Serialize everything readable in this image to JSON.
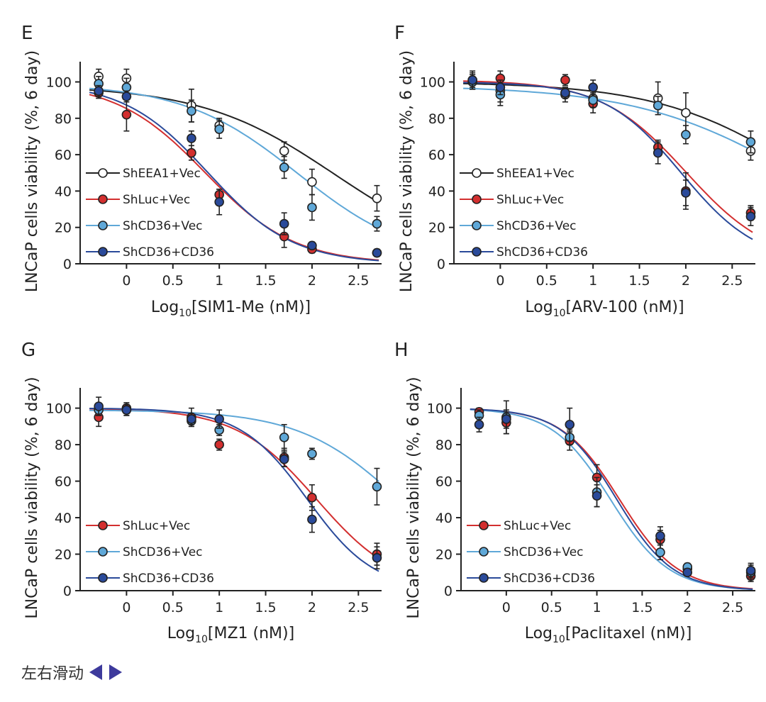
{
  "footer": {
    "scroll_hint": "左右滑动",
    "left_arrow_icon": "triangle-left-icon",
    "right_arrow_icon": "triangle-right-icon",
    "arrow_color": "#3d3a9c"
  },
  "colors": {
    "ShEEA1+Vec": {
      "line": "#222222",
      "fill": "#ffffff"
    },
    "ShLuc+Vec": {
      "line": "#d32f2f",
      "fill": "#d32f2f"
    },
    "ShCD36+Vec": {
      "line": "#5fa8d8",
      "fill": "#5fa8d8"
    },
    "ShCD36+CD36": {
      "line": "#2a4a9a",
      "fill": "#2a4a9a"
    }
  },
  "chart_data": [
    {
      "panel": "E",
      "type": "scatter",
      "xlabel_prefix": "Log",
      "xlabel_sub": "10",
      "xlabel_rest": "[SIM1-Me (nM)]",
      "ylabel": "LNCaP cells viability (%, 6 day)",
      "xlim": [
        -0.5,
        2.75
      ],
      "ylim": [
        0,
        108
      ],
      "xticks": [
        0,
        0.5,
        1,
        1.5,
        2,
        2.5
      ],
      "xtick_labels": [
        "0",
        "0.5",
        "1",
        "1.5",
        "2",
        "2.5"
      ],
      "yticks": [
        0,
        20,
        40,
        60,
        80,
        100
      ],
      "ytick_labels": [
        "0",
        "20",
        "40",
        "60",
        "80",
        "100"
      ],
      "x": [
        -0.3,
        0,
        0.7,
        1,
        1.7,
        2,
        2.7
      ],
      "series": [
        {
          "name": "ShEEA1+Vec",
          "values": [
            103,
            102,
            87,
            76,
            62,
            45,
            36
          ],
          "errors": [
            4,
            5,
            9,
            4,
            5,
            7,
            7
          ],
          "fit": {
            "top": 98,
            "bottom": 0,
            "logIC50": 2.25,
            "hill": 0.6
          }
        },
        {
          "name": "ShLuc+Vec",
          "values": [
            94,
            82,
            61,
            38,
            15,
            8,
            6
          ],
          "errors": [
            3,
            9,
            4,
            3,
            6,
            2,
            2
          ],
          "fit": {
            "top": 100,
            "bottom": 0,
            "logIC50": 0.85,
            "hill": 0.9
          }
        },
        {
          "name": "ShCD36+Vec",
          "values": [
            99,
            97,
            84,
            74,
            53,
            31,
            22
          ],
          "errors": [
            4,
            5,
            6,
            5,
            6,
            7,
            4
          ],
          "fit": {
            "top": 99,
            "bottom": 0,
            "logIC50": 1.85,
            "hill": 0.7
          }
        },
        {
          "name": "ShCD36+CD36",
          "values": [
            95,
            92,
            69,
            34,
            22,
            10,
            6
          ],
          "errors": [
            3,
            3,
            4,
            7,
            6,
            2,
            2
          ],
          "fit": {
            "top": 100,
            "bottom": 0,
            "logIC50": 0.88,
            "hill": 0.95
          }
        }
      ],
      "legend": [
        "ShEEA1+Vec",
        "ShLuc+Vec",
        "ShCD36+Vec",
        "ShCD36+CD36"
      ]
    },
    {
      "panel": "F",
      "type": "scatter",
      "xlabel_prefix": "Log",
      "xlabel_sub": "10",
      "xlabel_rest": "[ARV-100 (nM)]",
      "ylabel": "LNCaP cells viability (%, 6 day)",
      "xlim": [
        -0.5,
        2.75
      ],
      "ylim": [
        0,
        108
      ],
      "xticks": [
        0,
        0.5,
        1,
        1.5,
        2,
        2.5
      ],
      "xtick_labels": [
        "0",
        "0.5",
        "1",
        "1.5",
        "2",
        "2.5"
      ],
      "yticks": [
        0,
        20,
        40,
        60,
        80,
        100
      ],
      "ytick_labels": [
        "0",
        "20",
        "40",
        "60",
        "80",
        "100"
      ],
      "x": [
        -0.3,
        0,
        0.7,
        1,
        1.7,
        2,
        2.7
      ],
      "series": [
        {
          "name": "ShEEA1+Vec",
          "values": [
            101,
            95,
            93,
            91,
            91,
            83,
            62
          ],
          "errors": [
            5,
            6,
            4,
            4,
            9,
            11,
            5
          ],
          "fit": {
            "top": 100,
            "bottom": 0,
            "logIC50": 3.3,
            "hill": 0.55
          }
        },
        {
          "name": "ShLuc+Vec",
          "values": [
            100,
            102,
            101,
            88,
            64,
            40,
            28
          ],
          "errors": [
            4,
            4,
            3,
            5,
            4,
            10,
            4
          ],
          "fit": {
            "top": 101,
            "bottom": 0,
            "logIC50": 2.0,
            "hill": 0.95
          }
        },
        {
          "name": "ShCD36+Vec",
          "values": [
            100,
            93,
            94,
            90,
            87,
            71,
            67
          ],
          "errors": [
            4,
            6,
            3,
            4,
            5,
            5,
            6
          ],
          "fit": {
            "top": 98,
            "bottom": 0,
            "logIC50": 3.2,
            "hill": 0.5
          }
        },
        {
          "name": "ShCD36+CD36",
          "values": [
            101,
            97,
            94,
            97,
            61,
            39,
            26
          ],
          "errors": [
            4,
            4,
            3,
            4,
            6,
            7,
            5
          ],
          "fit": {
            "top": 100,
            "bottom": 0,
            "logIC50": 1.95,
            "hill": 1.05
          }
        }
      ],
      "legend": [
        "ShEEA1+Vec",
        "ShLuc+Vec",
        "ShCD36+Vec",
        "ShCD36+CD36"
      ]
    },
    {
      "panel": "G",
      "type": "scatter",
      "xlabel_prefix": "Log",
      "xlabel_sub": "10",
      "xlabel_rest": "[MZ1 (nM)]",
      "ylabel": "LNCaP cells viability (%, 6 day)",
      "xlim": [
        -0.5,
        2.75
      ],
      "ylim": [
        0,
        108
      ],
      "xticks": [
        0,
        0.5,
        1,
        1.5,
        2,
        2.5
      ],
      "xtick_labels": [
        "0",
        "0.5",
        "1",
        "1.5",
        "2",
        "2.5"
      ],
      "yticks": [
        0,
        20,
        40,
        60,
        80,
        100
      ],
      "ytick_labels": [
        "0",
        "20",
        "40",
        "60",
        "80",
        "100"
      ],
      "x": [
        -0.3,
        0,
        0.7,
        1,
        1.7,
        2,
        2.7
      ],
      "series": [
        {
          "name": "ShLuc+Vec",
          "values": [
            95,
            100,
            95,
            80,
            73,
            51,
            20
          ],
          "errors": [
            5,
            3,
            5,
            3,
            5,
            7,
            6
          ],
          "fit": {
            "top": 100,
            "bottom": 0,
            "logIC50": 2.05,
            "hill": 1.0
          }
        },
        {
          "name": "ShCD36+Vec",
          "values": [
            99,
            99,
            93,
            88,
            84,
            75,
            57
          ],
          "errors": [
            3,
            3,
            3,
            3,
            7,
            3,
            10
          ],
          "fit": {
            "top": 99,
            "bottom": 0,
            "logIC50": 2.95,
            "hill": 0.8
          }
        },
        {
          "name": "ShCD36+CD36",
          "values": [
            101,
            99,
            94,
            94,
            72,
            39,
            18
          ],
          "errors": [
            5,
            3,
            3,
            5,
            4,
            7,
            6
          ],
          "fit": {
            "top": 100,
            "bottom": 0,
            "logIC50": 1.95,
            "hill": 1.2
          }
        }
      ],
      "legend": [
        "ShLuc+Vec",
        "ShCD36+Vec",
        "ShCD36+CD36"
      ]
    },
    {
      "panel": "H",
      "type": "scatter",
      "xlabel_prefix": "Log",
      "xlabel_sub": "10",
      "xlabel_rest": "[Paclitaxel (nM)]",
      "ylabel": "LNCaP cells viability (%, 6 day)",
      "xlim": [
        -0.5,
        2.75
      ],
      "ylim": [
        0,
        108
      ],
      "xticks": [
        0,
        0.5,
        1,
        1.5,
        2,
        2.5
      ],
      "xtick_labels": [
        "0",
        "0.5",
        "1",
        "1.5",
        "2",
        "2.5"
      ],
      "yticks": [
        0,
        20,
        40,
        60,
        80,
        100
      ],
      "ytick_labels": [
        "0",
        "20",
        "40",
        "60",
        "80",
        "100"
      ],
      "x": [
        -0.3,
        0,
        0.7,
        1,
        1.7,
        2,
        2.7
      ],
      "series": [
        {
          "name": "ShLuc+Vec",
          "values": [
            98,
            92,
            82,
            62,
            28,
            12,
            8
          ],
          "errors": [
            2,
            6,
            5,
            7,
            5,
            2,
            3
          ],
          "fit": {
            "top": 100,
            "bottom": 0,
            "logIC50": 1.25,
            "hill": 1.35
          }
        },
        {
          "name": "ShCD36+Vec",
          "values": [
            96,
            95,
            84,
            54,
            21,
            13,
            10
          ],
          "errors": [
            3,
            9,
            4,
            8,
            4,
            2,
            4
          ],
          "fit": {
            "top": 100,
            "bottom": 0,
            "logIC50": 1.15,
            "hill": 1.35
          }
        },
        {
          "name": "ShCD36+CD36",
          "values": [
            91,
            94,
            91,
            52,
            30,
            10,
            11
          ],
          "errors": [
            4,
            5,
            9,
            6,
            5,
            2,
            4
          ],
          "fit": {
            "top": 100,
            "bottom": 0,
            "logIC50": 1.22,
            "hill": 1.4
          }
        }
      ],
      "legend": [
        "ShLuc+Vec",
        "ShCD36+Vec",
        "ShCD36+CD36"
      ]
    }
  ]
}
